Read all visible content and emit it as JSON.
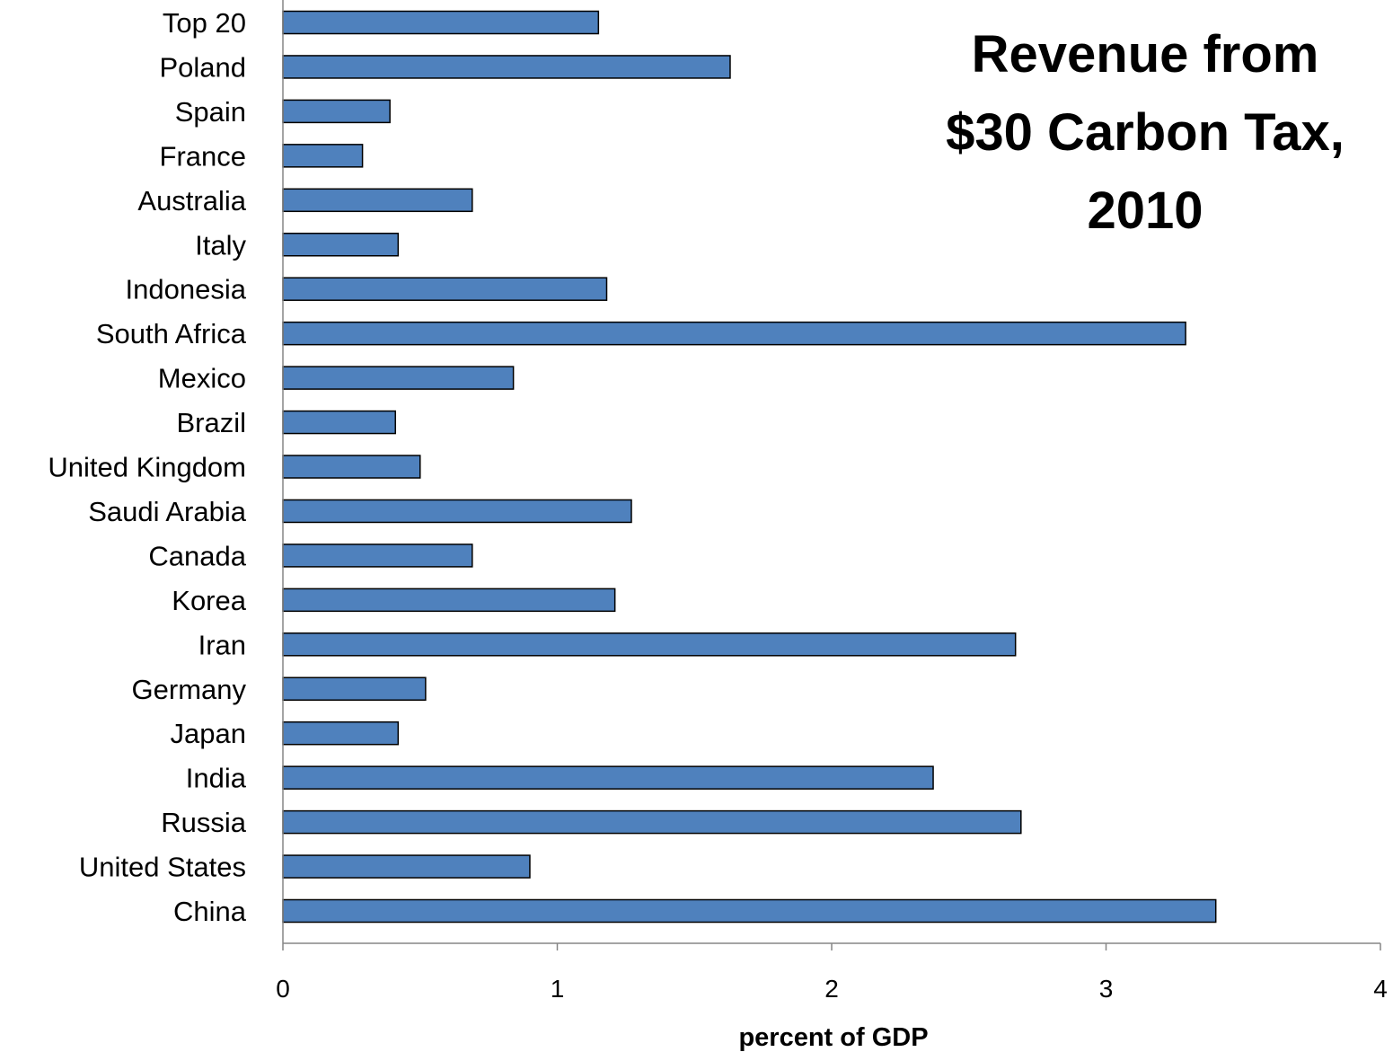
{
  "chart_data": {
    "type": "bar",
    "orientation": "horizontal",
    "title_lines": [
      "Revenue from",
      "$30 Carbon Tax,",
      "2010"
    ],
    "xlabel": "percent of GDP",
    "ylabel": "",
    "xlim": [
      0,
      4
    ],
    "xticks": [
      "0",
      "1",
      "2",
      "3",
      "4"
    ],
    "grid": false,
    "bar_color": "#4F81BD",
    "bar_edge_color": "#000000",
    "categories": [
      "Top 20",
      "Poland",
      "Spain",
      "France",
      "Australia",
      "Italy",
      "Indonesia",
      "South Africa",
      "Mexico",
      "Brazil",
      "United Kingdom",
      "Saudi Arabia",
      "Canada",
      "Korea",
      "Iran",
      "Germany",
      "Japan",
      "India",
      "Russia",
      "United States",
      "China"
    ],
    "values": [
      1.15,
      1.63,
      0.39,
      0.29,
      0.69,
      0.42,
      1.18,
      3.29,
      0.84,
      0.41,
      0.5,
      1.27,
      0.69,
      1.21,
      2.67,
      0.52,
      0.42,
      2.37,
      2.69,
      0.9,
      3.4
    ]
  }
}
